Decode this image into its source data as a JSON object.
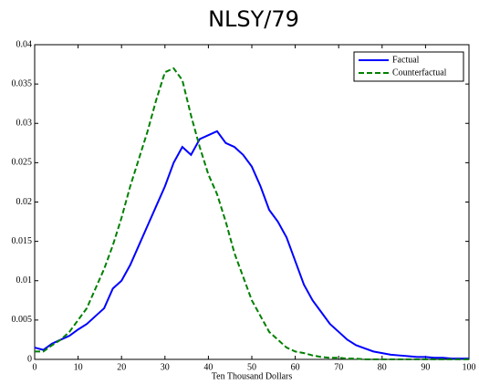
{
  "chart_data": {
    "type": "line",
    "title": "NLSY/79",
    "xlabel": "Ten Thousand Dollars",
    "x": [
      0,
      2,
      4,
      6,
      8,
      10,
      12,
      14,
      16,
      18,
      20,
      22,
      24,
      26,
      28,
      30,
      32,
      34,
      36,
      38,
      40,
      42,
      44,
      46,
      48,
      50,
      52,
      54,
      56,
      58,
      60,
      62,
      64,
      66,
      68,
      70,
      72,
      74,
      76,
      78,
      80,
      82,
      84,
      86,
      88,
      90,
      92,
      94,
      96,
      98,
      100
    ],
    "series": [
      {
        "name": "Factual",
        "color": "#0000ff",
        "dash": "solid",
        "values": [
          0.0015,
          0.0012,
          0.002,
          0.0025,
          0.003,
          0.0038,
          0.0045,
          0.0055,
          0.0065,
          0.009,
          0.01,
          0.012,
          0.0145,
          0.017,
          0.0195,
          0.022,
          0.025,
          0.027,
          0.026,
          0.028,
          0.0285,
          0.029,
          0.0275,
          0.027,
          0.026,
          0.0245,
          0.022,
          0.019,
          0.0175,
          0.0155,
          0.0125,
          0.0095,
          0.0075,
          0.006,
          0.0045,
          0.0035,
          0.0025,
          0.0018,
          0.0014,
          0.001,
          0.0008,
          0.0006,
          0.0005,
          0.0004,
          0.0003,
          0.0003,
          0.0002,
          0.0002,
          0.0001,
          0.0001,
          0.0001
        ]
      },
      {
        "name": "Counterfactual",
        "color": "#008000",
        "dash": "dashed",
        "values": [
          0.001,
          0.001,
          0.0018,
          0.0025,
          0.0035,
          0.005,
          0.0065,
          0.009,
          0.0115,
          0.0145,
          0.018,
          0.022,
          0.0255,
          0.029,
          0.033,
          0.0365,
          0.037,
          0.0355,
          0.031,
          0.027,
          0.0235,
          0.021,
          0.0175,
          0.0135,
          0.0105,
          0.0075,
          0.0055,
          0.0035,
          0.0025,
          0.0015,
          0.001,
          0.0008,
          0.0005,
          0.0003,
          0.0002,
          0.0002,
          0.0001,
          0.0001,
          0,
          0,
          0,
          0,
          0,
          0,
          0,
          0,
          0,
          0,
          0,
          0,
          0
        ]
      }
    ],
    "xlim": [
      0,
      100
    ],
    "xticks": [
      0,
      10,
      20,
      30,
      40,
      50,
      60,
      70,
      80,
      90,
      100
    ],
    "ylim": [
      0,
      0.04
    ],
    "yticks": [
      0,
      0.005,
      0.01,
      0.015,
      0.02,
      0.025,
      0.03,
      0.035,
      0.04
    ],
    "legend": "upper right"
  }
}
